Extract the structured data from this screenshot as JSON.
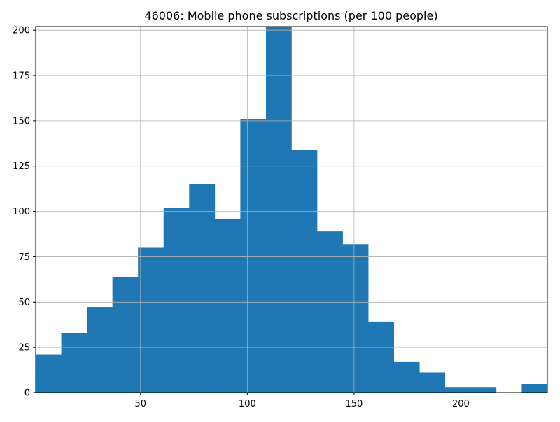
{
  "chart_data": {
    "type": "bar",
    "title": "46006: Mobile phone subscriptions (per 100 people)",
    "xlabel": "",
    "ylabel": "",
    "xlim": [
      0.9,
      240.5
    ],
    "ylim": [
      0,
      202
    ],
    "grid": true,
    "bar_color": "#1f77b4",
    "bin_width": 11.98,
    "bins": [
      {
        "x0": 0.9,
        "x1": 12.88,
        "count": 21
      },
      {
        "x0": 12.88,
        "x1": 24.86,
        "count": 33
      },
      {
        "x0": 24.86,
        "x1": 36.84,
        "count": 47
      },
      {
        "x0": 36.84,
        "x1": 48.82,
        "count": 64
      },
      {
        "x0": 48.82,
        "x1": 60.8,
        "count": 80
      },
      {
        "x0": 60.8,
        "x1": 72.78,
        "count": 102
      },
      {
        "x0": 72.78,
        "x1": 84.76,
        "count": 115
      },
      {
        "x0": 84.76,
        "x1": 96.74,
        "count": 96
      },
      {
        "x0": 96.74,
        "x1": 108.72,
        "count": 151
      },
      {
        "x0": 108.72,
        "x1": 120.7,
        "count": 202
      },
      {
        "x0": 120.7,
        "x1": 132.68,
        "count": 134
      },
      {
        "x0": 132.68,
        "x1": 144.66,
        "count": 89
      },
      {
        "x0": 144.66,
        "x1": 156.64,
        "count": 82
      },
      {
        "x0": 156.64,
        "x1": 168.62,
        "count": 39
      },
      {
        "x0": 168.62,
        "x1": 180.6,
        "count": 17
      },
      {
        "x0": 180.6,
        "x1": 192.58,
        "count": 11
      },
      {
        "x0": 192.58,
        "x1": 204.56,
        "count": 3
      },
      {
        "x0": 204.56,
        "x1": 216.54,
        "count": 3
      },
      {
        "x0": 216.54,
        "x1": 228.52,
        "count": 0
      },
      {
        "x0": 228.52,
        "x1": 240.5,
        "count": 5
      }
    ],
    "x_ticks": [
      {
        "value": 50,
        "label": "50"
      },
      {
        "value": 100,
        "label": "100"
      },
      {
        "value": 150,
        "label": "150"
      },
      {
        "value": 200,
        "label": "200"
      }
    ],
    "y_ticks": [
      {
        "value": 0,
        "label": "0"
      },
      {
        "value": 25,
        "label": "25"
      },
      {
        "value": 50,
        "label": "50"
      },
      {
        "value": 75,
        "label": "75"
      },
      {
        "value": 100,
        "label": "100"
      },
      {
        "value": 125,
        "label": "125"
      },
      {
        "value": 150,
        "label": "150"
      },
      {
        "value": 175,
        "label": "175"
      },
      {
        "value": 200,
        "label": "200"
      }
    ]
  }
}
